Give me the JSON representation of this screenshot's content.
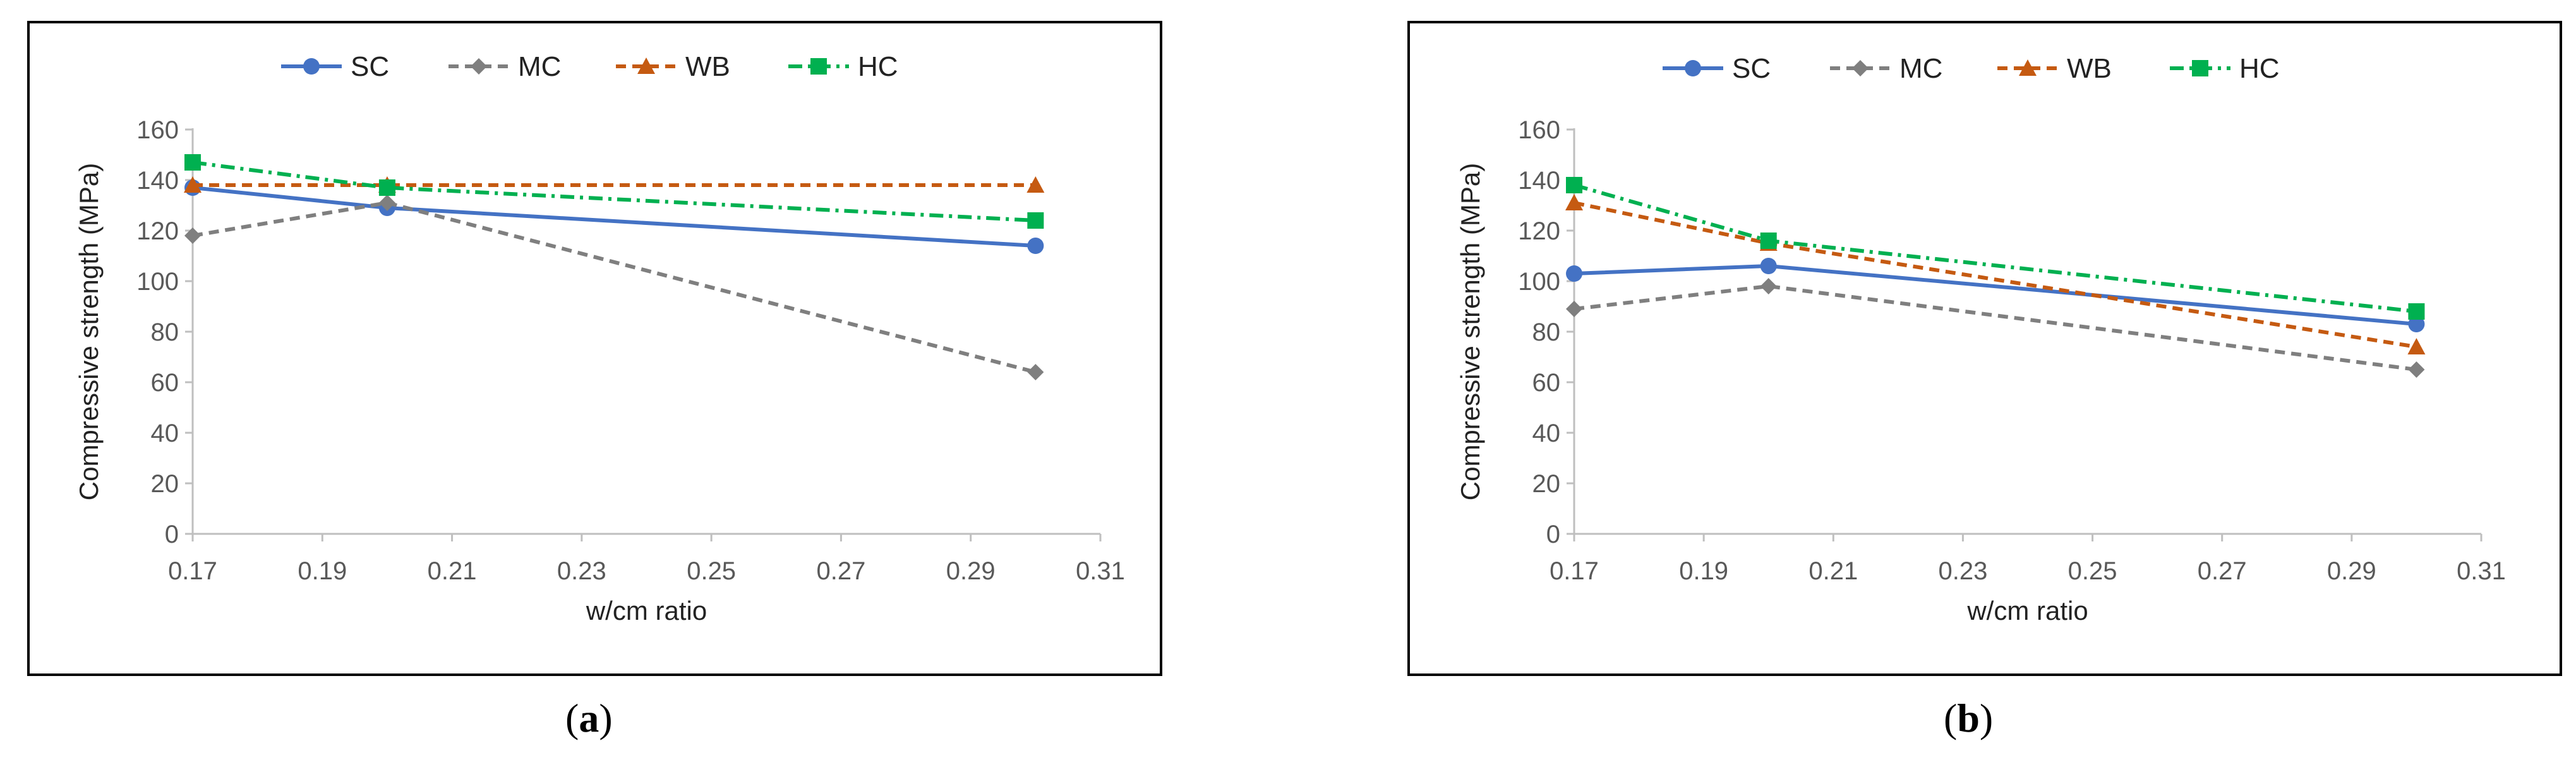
{
  "chart_data": [
    {
      "type": "line",
      "panel": "a",
      "caption_label": "a",
      "title": "",
      "xlabel": "w/cm ratio",
      "ylabel": "Compressive strength (MPa)",
      "xlim": [
        0.17,
        0.31
      ],
      "ylim": [
        0,
        160
      ],
      "xticks": [
        "0.17",
        "0.19",
        "0.21",
        "0.23",
        "0.25",
        "0.27",
        "0.29",
        "0.31"
      ],
      "yticks": [
        "0",
        "20",
        "40",
        "60",
        "80",
        "100",
        "120",
        "140",
        "160"
      ],
      "x": [
        0.17,
        0.2,
        0.3
      ],
      "legend_position": "top",
      "series": [
        {
          "name": "SC",
          "values": [
            137,
            129,
            114
          ],
          "color": "#4472C4",
          "dash": "solid",
          "marker": "circle"
        },
        {
          "name": "MC",
          "values": [
            118,
            131,
            64
          ],
          "color": "#7F7F7F",
          "dash": "dash",
          "marker": "diamond"
        },
        {
          "name": "WB",
          "values": [
            138,
            138,
            138
          ],
          "color": "#C55A11",
          "dash": "dash",
          "marker": "triangle"
        },
        {
          "name": "HC",
          "values": [
            147,
            137,
            124
          ],
          "color": "#00B050",
          "dash": "dashdot",
          "marker": "square"
        }
      ]
    },
    {
      "type": "line",
      "panel": "b",
      "caption_label": "b",
      "title": "",
      "xlabel": "w/cm ratio",
      "ylabel": "Compressive strength (MPa)",
      "xlim": [
        0.17,
        0.31
      ],
      "ylim": [
        0,
        160
      ],
      "xticks": [
        "0.17",
        "0.19",
        "0.21",
        "0.23",
        "0.25",
        "0.27",
        "0.29",
        "0.31"
      ],
      "yticks": [
        "0",
        "20",
        "40",
        "60",
        "80",
        "100",
        "120",
        "140",
        "160"
      ],
      "x": [
        0.17,
        0.2,
        0.3
      ],
      "legend_position": "top",
      "series": [
        {
          "name": "SC",
          "values": [
            103,
            106,
            83
          ],
          "color": "#4472C4",
          "dash": "solid",
          "marker": "circle"
        },
        {
          "name": "MC",
          "values": [
            89,
            98,
            65
          ],
          "color": "#7F7F7F",
          "dash": "dash",
          "marker": "diamond"
        },
        {
          "name": "WB",
          "values": [
            131,
            115,
            74
          ],
          "color": "#C55A11",
          "dash": "dash",
          "marker": "triangle"
        },
        {
          "name": "HC",
          "values": [
            138,
            116,
            88
          ],
          "color": "#00B050",
          "dash": "dashdot",
          "marker": "square"
        }
      ]
    }
  ]
}
